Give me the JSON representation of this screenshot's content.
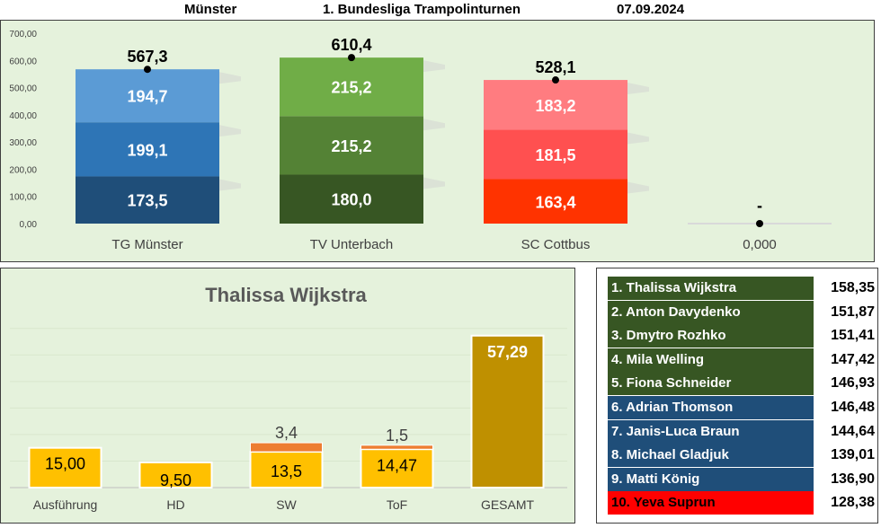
{
  "header": {
    "location": "Münster",
    "title": "1. Bundesliga Trampolinturnen",
    "date": "07.09.2024"
  },
  "team_chart": {
    "type": "bar",
    "stacked": true,
    "ylim": [
      0,
      700
    ],
    "yticks": [
      "0,00",
      "100,00",
      "200,00",
      "300,00",
      "400,00",
      "500,00",
      "600,00",
      "700,00"
    ],
    "categories": [
      "TG Münster",
      "TV Unterbach",
      "SC Cottbus",
      "0,000"
    ],
    "teams": [
      {
        "name": "TG Münster",
        "total": 567.3,
        "total_label": "567,3",
        "segments": [
          {
            "value": 173.5,
            "label": "173,5",
            "color": "#1f4e79"
          },
          {
            "value": 199.1,
            "label": "199,1",
            "color": "#2e75b6"
          },
          {
            "value": 194.7,
            "label": "194,7",
            "color": "#5b9bd5"
          }
        ]
      },
      {
        "name": "TV Unterbach",
        "total": 610.4,
        "total_label": "610,4",
        "segments": [
          {
            "value": 180.0,
            "label": "180,0",
            "color": "#375623"
          },
          {
            "value": 215.2,
            "label": "215,2",
            "color": "#548235"
          },
          {
            "value": 215.2,
            "label": "215,2",
            "color": "#70ad47"
          }
        ]
      },
      {
        "name": "SC Cottbus",
        "total": 528.1,
        "total_label": "528,1",
        "segments": [
          {
            "value": 163.4,
            "label": "163,4",
            "color": "#ff3300"
          },
          {
            "value": 181.5,
            "label": "181,5",
            "color": "#ff5050"
          },
          {
            "value": 183.2,
            "label": "183,2",
            "color": "#ff7c80"
          }
        ]
      },
      {
        "name": "0,000",
        "total": 0,
        "total_label": "-",
        "segments": []
      }
    ]
  },
  "athlete_chart": {
    "type": "bar",
    "title": "Thalissa Wijkstra",
    "ylim": [
      0,
      65
    ],
    "categories": [
      "Ausführung",
      "HD",
      "SW",
      "ToF",
      "GESAMT"
    ],
    "bars": [
      {
        "category": "Ausführung",
        "value": 15.0,
        "label": "15,00",
        "color": "#ffc000"
      },
      {
        "category": "HD",
        "value": 9.5,
        "label": "9,50",
        "color": "#ffc000"
      },
      {
        "category": "SW",
        "value": 13.5,
        "label": "13,5",
        "color": "#ffc000",
        "extra": 3.4,
        "extra_label": "3,4",
        "extra_color": "#ed7d31"
      },
      {
        "category": "ToF",
        "value": 14.47,
        "label": "14,47",
        "color": "#ffc000",
        "extra": 1.5,
        "extra_label": "1,5",
        "extra_color": "#ed7d31"
      },
      {
        "category": "GESAMT",
        "value": 57.29,
        "label": "57,29",
        "color": "#bf9000"
      }
    ]
  },
  "ranking": [
    {
      "name": "1. Thalissa Wijkstra",
      "score": "158,35",
      "color": "#375623",
      "text_color": "#ffffff"
    },
    {
      "name": "2. Anton Davydenko",
      "score": "151,87",
      "color": "#375623",
      "text_color": "#ffffff"
    },
    {
      "name": "3. Dmytro Rozhko",
      "score": "151,41",
      "color": "#375623",
      "text_color": "#ffffff"
    },
    {
      "name": "4. Mila Welling",
      "score": "147,42",
      "color": "#375623",
      "text_color": "#ffffff"
    },
    {
      "name": "5. Fiona Schneider",
      "score": "146,93",
      "color": "#375623",
      "text_color": "#ffffff"
    },
    {
      "name": "6. Adrian Thomson",
      "score": "146,48",
      "color": "#1f4e79",
      "text_color": "#ffffff"
    },
    {
      "name": "7. Janis-Luca Braun",
      "score": "144,64",
      "color": "#1f4e79",
      "text_color": "#ffffff"
    },
    {
      "name": "8. Michael Gladjuk",
      "score": "139,01",
      "color": "#1f4e79",
      "text_color": "#ffffff"
    },
    {
      "name": "9. Matti König",
      "score": "136,90",
      "color": "#1f4e79",
      "text_color": "#ffffff"
    },
    {
      "name": "10. Yeva Suprun",
      "score": "128,38",
      "color": "#ff0000",
      "text_color": "#000000"
    }
  ]
}
